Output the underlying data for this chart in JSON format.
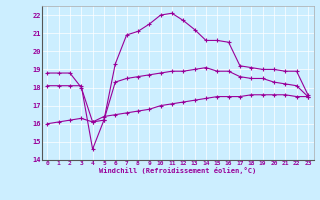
{
  "xlabel": "Windchill (Refroidissement éolien,°C)",
  "bg_color": "#cceeff",
  "line_color": "#990099",
  "xlim": [
    -0.5,
    23.5
  ],
  "ylim": [
    14,
    22.5
  ],
  "yticks": [
    14,
    15,
    16,
    17,
    18,
    19,
    20,
    21,
    22
  ],
  "xticks": [
    0,
    1,
    2,
    3,
    4,
    5,
    6,
    7,
    8,
    9,
    10,
    11,
    12,
    13,
    14,
    15,
    16,
    17,
    18,
    19,
    20,
    21,
    22,
    23
  ],
  "series1": {
    "x": [
      0,
      1,
      2,
      3,
      4,
      5,
      6,
      7,
      8,
      9,
      10,
      11,
      12,
      13,
      14,
      15,
      16,
      17,
      18,
      19,
      20,
      21,
      22,
      23
    ],
    "y": [
      18.8,
      18.8,
      18.8,
      18.0,
      16.1,
      16.2,
      19.3,
      20.9,
      21.1,
      21.5,
      22.0,
      22.1,
      21.7,
      21.2,
      20.6,
      20.6,
      20.5,
      19.2,
      19.1,
      19.0,
      19.0,
      18.9,
      18.9,
      17.6
    ]
  },
  "series2": {
    "x": [
      0,
      1,
      2,
      3,
      4,
      5,
      6,
      7,
      8,
      9,
      10,
      11,
      12,
      13,
      14,
      15,
      16,
      17,
      18,
      19,
      20,
      21,
      22,
      23
    ],
    "y": [
      18.1,
      18.1,
      18.1,
      18.1,
      14.6,
      16.2,
      18.3,
      18.5,
      18.6,
      18.7,
      18.8,
      18.9,
      18.9,
      19.0,
      19.1,
      18.9,
      18.9,
      18.6,
      18.5,
      18.5,
      18.3,
      18.2,
      18.1,
      17.5
    ]
  },
  "series3": {
    "x": [
      0,
      1,
      2,
      3,
      4,
      5,
      6,
      7,
      8,
      9,
      10,
      11,
      12,
      13,
      14,
      15,
      16,
      17,
      18,
      19,
      20,
      21,
      22,
      23
    ],
    "y": [
      16.0,
      16.1,
      16.2,
      16.3,
      16.1,
      16.4,
      16.5,
      16.6,
      16.7,
      16.8,
      17.0,
      17.1,
      17.2,
      17.3,
      17.4,
      17.5,
      17.5,
      17.5,
      17.6,
      17.6,
      17.6,
      17.6,
      17.5,
      17.5
    ]
  }
}
